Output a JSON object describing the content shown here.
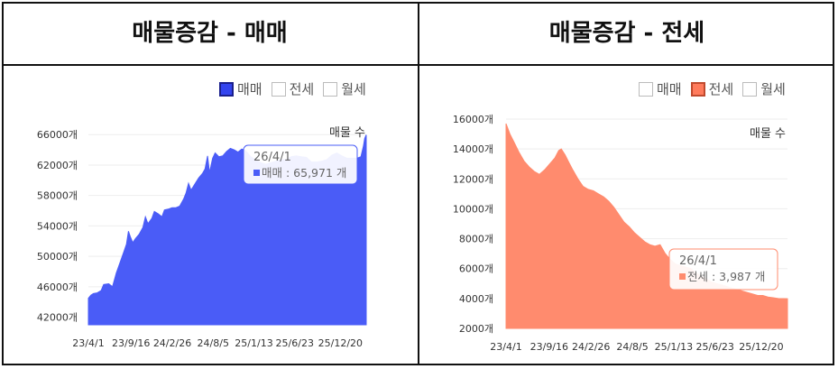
{
  "panels": [
    {
      "title": "매물증감 - 매매",
      "legend": [
        {
          "label": "매매",
          "active": true,
          "color": "#3344ee"
        },
        {
          "label": "전세",
          "active": false
        },
        {
          "label": "월세",
          "active": false
        }
      ],
      "subtitle": "매물 수",
      "tooltip": {
        "date": "26/4/1",
        "value_text": "매매 : 65,971 개"
      },
      "chart_data": {
        "type": "area",
        "series_name": "매매",
        "color": "#4a5cf7",
        "ylim": [
          41000,
          66500
        ],
        "yticks": [
          42000,
          46000,
          50000,
          54000,
          58000,
          62000,
          66000
        ],
        "ytick_labels": [
          "42000개",
          "46000개",
          "50000개",
          "54000개",
          "58000개",
          "62000개",
          "66000개"
        ],
        "xtick_labels": [
          "23/4/1",
          "23/9/16",
          "24/2/26",
          "24/8/5",
          "25/1/13",
          "25/6/23",
          "25/12/20"
        ],
        "x_range_days": [
          0,
          1096
        ],
        "xtick_days": [
          0,
          168,
          331,
          492,
          653,
          814,
          994
        ],
        "points": [
          [
            0,
            44500
          ],
          [
            10,
            44900
          ],
          [
            20,
            45100
          ],
          [
            35,
            45200
          ],
          [
            50,
            45500
          ],
          [
            60,
            46300
          ],
          [
            80,
            46400
          ],
          [
            95,
            46000
          ],
          [
            110,
            47800
          ],
          [
            125,
            49200
          ],
          [
            140,
            50600
          ],
          [
            150,
            51600
          ],
          [
            158,
            53300
          ],
          [
            165,
            52600
          ],
          [
            175,
            51800
          ],
          [
            185,
            52300
          ],
          [
            200,
            52900
          ],
          [
            215,
            53800
          ],
          [
            225,
            55200
          ],
          [
            235,
            54300
          ],
          [
            250,
            55000
          ],
          [
            260,
            55900
          ],
          [
            275,
            55600
          ],
          [
            290,
            55200
          ],
          [
            300,
            56100
          ],
          [
            315,
            56200
          ],
          [
            330,
            56400
          ],
          [
            345,
            56400
          ],
          [
            360,
            56600
          ],
          [
            375,
            57500
          ],
          [
            385,
            58300
          ],
          [
            395,
            59600
          ],
          [
            405,
            58700
          ],
          [
            420,
            59500
          ],
          [
            435,
            60300
          ],
          [
            450,
            60900
          ],
          [
            460,
            61500
          ],
          [
            470,
            63200
          ],
          [
            478,
            61000
          ],
          [
            490,
            62900
          ],
          [
            500,
            63600
          ],
          [
            515,
            63100
          ],
          [
            530,
            63200
          ],
          [
            545,
            63800
          ],
          [
            560,
            64200
          ],
          [
            575,
            64000
          ],
          [
            590,
            63700
          ],
          [
            605,
            64100
          ],
          [
            620,
            63900
          ],
          [
            640,
            63100
          ],
          [
            660,
            62700
          ],
          [
            680,
            62300
          ],
          [
            700,
            62100
          ],
          [
            720,
            62300
          ],
          [
            740,
            62500
          ],
          [
            760,
            62700
          ],
          [
            780,
            62700
          ],
          [
            800,
            63100
          ],
          [
            820,
            63200
          ],
          [
            840,
            63100
          ],
          [
            860,
            63000
          ],
          [
            880,
            62400
          ],
          [
            900,
            62400
          ],
          [
            920,
            62500
          ],
          [
            940,
            62700
          ],
          [
            960,
            63300
          ],
          [
            980,
            63600
          ],
          [
            1000,
            63200
          ],
          [
            1020,
            62900
          ],
          [
            1040,
            62900
          ],
          [
            1060,
            62900
          ],
          [
            1075,
            63100
          ],
          [
            1085,
            64500
          ],
          [
            1090,
            65500
          ],
          [
            1096,
            65971
          ]
        ]
      }
    },
    {
      "title": "매물증감 - 전세",
      "legend": [
        {
          "label": "매매",
          "active": false
        },
        {
          "label": "전세",
          "active": true,
          "color": "#ff7b5c"
        },
        {
          "label": "월세",
          "active": false
        }
      ],
      "subtitle": "매물 수",
      "tooltip": {
        "date": "26/4/1",
        "value_text": "전세 : 3,987 개"
      },
      "chart_data": {
        "type": "area",
        "series_name": "전세",
        "color": "#ff8b6e",
        "ylim": [
          2000,
          16000
        ],
        "yticks": [
          2000,
          4000,
          6000,
          8000,
          10000,
          12000,
          14000,
          16000
        ],
        "ytick_labels": [
          "2000개",
          "4000개",
          "6000개",
          "8000개",
          "10000개",
          "12000개",
          "14000개",
          "16000개"
        ],
        "xtick_labels": [
          "23/4/1",
          "23/9/16",
          "24/2/26",
          "24/8/5",
          "25/1/13",
          "25/6/23",
          "25/12/20"
        ],
        "x_range_days": [
          0,
          1096
        ],
        "xtick_days": [
          0,
          168,
          331,
          492,
          653,
          814,
          994
        ],
        "points": [
          [
            0,
            15700
          ],
          [
            15,
            15000
          ],
          [
            30,
            14500
          ],
          [
            50,
            13800
          ],
          [
            70,
            13200
          ],
          [
            90,
            12800
          ],
          [
            110,
            12500
          ],
          [
            130,
            12300
          ],
          [
            150,
            12600
          ],
          [
            170,
            13000
          ],
          [
            190,
            13400
          ],
          [
            205,
            13900
          ],
          [
            215,
            14000
          ],
          [
            230,
            13600
          ],
          [
            245,
            13100
          ],
          [
            260,
            12600
          ],
          [
            280,
            12000
          ],
          [
            300,
            11500
          ],
          [
            320,
            11300
          ],
          [
            340,
            11200
          ],
          [
            360,
            11000
          ],
          [
            380,
            10800
          ],
          [
            400,
            10500
          ],
          [
            420,
            10100
          ],
          [
            440,
            9600
          ],
          [
            460,
            9100
          ],
          [
            480,
            8800
          ],
          [
            500,
            8400
          ],
          [
            520,
            8100
          ],
          [
            540,
            7800
          ],
          [
            560,
            7600
          ],
          [
            580,
            7500
          ],
          [
            600,
            7600
          ],
          [
            620,
            7000
          ],
          [
            640,
            6600
          ],
          [
            660,
            6300
          ],
          [
            680,
            6200
          ],
          [
            700,
            6100
          ],
          [
            720,
            6000
          ],
          [
            740,
            5700
          ],
          [
            760,
            5500
          ],
          [
            780,
            5300
          ],
          [
            800,
            5100
          ],
          [
            820,
            5000
          ],
          [
            840,
            4900
          ],
          [
            860,
            4800
          ],
          [
            880,
            4700
          ],
          [
            900,
            4600
          ],
          [
            920,
            4500
          ],
          [
            940,
            4400
          ],
          [
            960,
            4300
          ],
          [
            980,
            4200
          ],
          [
            1000,
            4200
          ],
          [
            1020,
            4100
          ],
          [
            1040,
            4050
          ],
          [
            1060,
            4000
          ],
          [
            1080,
            3990
          ],
          [
            1096,
            3987
          ]
        ]
      }
    }
  ]
}
